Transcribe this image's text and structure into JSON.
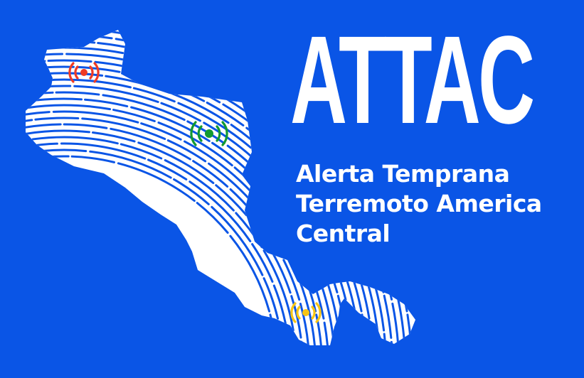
{
  "logo": {
    "title": "ATTAC",
    "subtitle_lines": [
      "Alerta Temprana",
      "Terremoto America",
      "Central"
    ]
  },
  "colors": {
    "background": "#0a55e6",
    "map": "#ffffff",
    "signal_north": "#ef3b24",
    "signal_center": "#139a31",
    "signal_south": "#f7c514"
  },
  "icons": {
    "signal": "broadcast-signal-icon",
    "map": "central-america-map"
  }
}
